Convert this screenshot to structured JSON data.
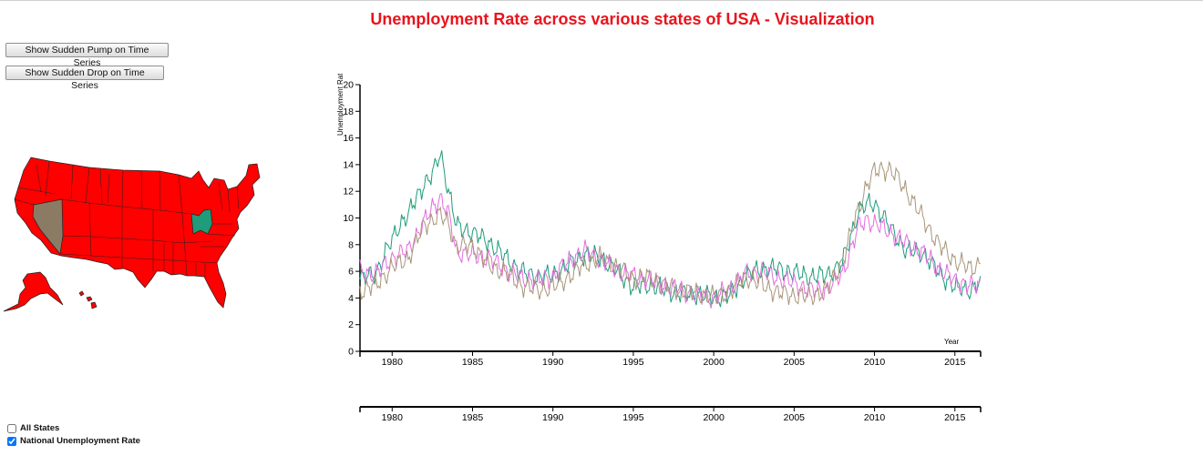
{
  "header": {
    "title": "Unemployment Rate across various states of USA - Visualization"
  },
  "controls": {
    "pump_button": "Show Sudden Pump on Time Series",
    "drop_button": "Show Sudden Drop on Time Series"
  },
  "legend_checkboxes": [
    {
      "label": "All States",
      "checked": false
    },
    {
      "label": "National Unemployment Rate",
      "checked": true
    }
  ],
  "map": {
    "default_fill": "#ff0000",
    "highlights": [
      {
        "state": "Nevada",
        "color": "#8b7b64"
      },
      {
        "state": "Ohio",
        "color": "#1f9c7a"
      }
    ]
  },
  "chart_data": {
    "type": "line",
    "title": "Unemployment Rate across various states of USA - Visualization",
    "xlabel": "Year",
    "ylabel": "Unemployment Rate",
    "xlim": [
      1978.0,
      2016.6
    ],
    "ylim": [
      0,
      20
    ],
    "x_ticks": [
      1980,
      1985,
      1990,
      1995,
      2000,
      2005,
      2010,
      2015
    ],
    "y_ticks": [
      0,
      2,
      4,
      6,
      8,
      10,
      12,
      14,
      16,
      18,
      20
    ],
    "grid": false,
    "series": [
      {
        "color": "#1f9c7a",
        "x": [
          1978,
          1979,
          1980,
          1980.5,
          1981,
          1981.5,
          1982,
          1982.5,
          1983,
          1983.5,
          1984,
          1985,
          1986,
          1987,
          1988,
          1989,
          1990,
          1991,
          1992,
          1993,
          1994,
          1995,
          1996,
          1997,
          1998,
          1999,
          2000,
          2001,
          2001.5,
          2002,
          2003,
          2004,
          2005,
          2006,
          2007,
          2008,
          2009,
          2009.5,
          2010,
          2010.5,
          2011,
          2012,
          2013,
          2014,
          2015,
          2016,
          2016.5
        ],
        "y": [
          5.4,
          5.9,
          8.4,
          9.6,
          10.2,
          11.5,
          12.6,
          13.2,
          14.9,
          12.1,
          9.4,
          8.9,
          8.2,
          7.1,
          6.0,
          5.6,
          5.7,
          6.5,
          7.3,
          7.0,
          6.0,
          4.8,
          5.0,
          4.6,
          4.3,
          4.3,
          4.0,
          4.2,
          4.9,
          5.7,
          6.2,
          6.2,
          5.9,
          5.6,
          5.7,
          6.6,
          10.5,
          11.0,
          11.1,
          10.2,
          9.2,
          7.5,
          7.4,
          5.9,
          4.8,
          4.6,
          5.1
        ]
      },
      {
        "color": "#e36de0",
        "x": [
          1978,
          1979,
          1980,
          1981,
          1982,
          1982.5,
          1983,
          1983.5,
          1984,
          1985,
          1986,
          1987,
          1988,
          1989,
          1990,
          1991,
          1992,
          1993,
          1994,
          1995,
          1996,
          1997,
          1998,
          1999,
          2000,
          2001,
          2002,
          2003,
          2004,
          2005,
          2006,
          2007,
          2008,
          2009,
          2009.5,
          2010,
          2011,
          2012,
          2013,
          2014,
          2015,
          2016,
          2016.5
        ],
        "y": [
          6.0,
          5.8,
          7.0,
          7.6,
          9.7,
          10.8,
          11.5,
          10.3,
          7.5,
          7.2,
          7.0,
          6.2,
          5.5,
          5.3,
          5.6,
          6.8,
          7.5,
          6.9,
          6.1,
          5.6,
          5.4,
          4.9,
          4.5,
          4.2,
          4.0,
          4.7,
          5.8,
          6.0,
          5.5,
          5.1,
          4.6,
          4.6,
          5.8,
          9.3,
          9.9,
          9.6,
          8.9,
          8.1,
          7.4,
          6.2,
          5.3,
          4.9,
          4.9
        ]
      },
      {
        "color": "#a8957a",
        "x": [
          1978,
          1979,
          1980,
          1981,
          1982,
          1983,
          1983.5,
          1984,
          1985,
          1986,
          1987,
          1988,
          1989,
          1990,
          1991,
          1992,
          1993,
          1994,
          1995,
          1996,
          1997,
          1998,
          1999,
          2000,
          2001,
          2002,
          2003,
          2004,
          2005,
          2006,
          2007,
          2008,
          2009,
          2009.5,
          2010,
          2010.5,
          2011,
          2011.5,
          2012,
          2013,
          2014,
          2015,
          2016,
          2016.5
        ],
        "y": [
          4.5,
          5.0,
          6.3,
          7.0,
          9.5,
          10.2,
          9.6,
          7.8,
          8.0,
          6.4,
          6.0,
          5.0,
          4.6,
          4.8,
          5.6,
          6.6,
          7.0,
          6.3,
          5.5,
          5.5,
          4.9,
          4.6,
          4.3,
          4.1,
          4.5,
          5.6,
          5.0,
          4.4,
          4.2,
          4.1,
          4.6,
          6.7,
          10.7,
          12.4,
          13.5,
          13.7,
          13.6,
          12.9,
          12.0,
          10.0,
          8.0,
          6.8,
          6.2,
          6.6
        ]
      }
    ]
  }
}
